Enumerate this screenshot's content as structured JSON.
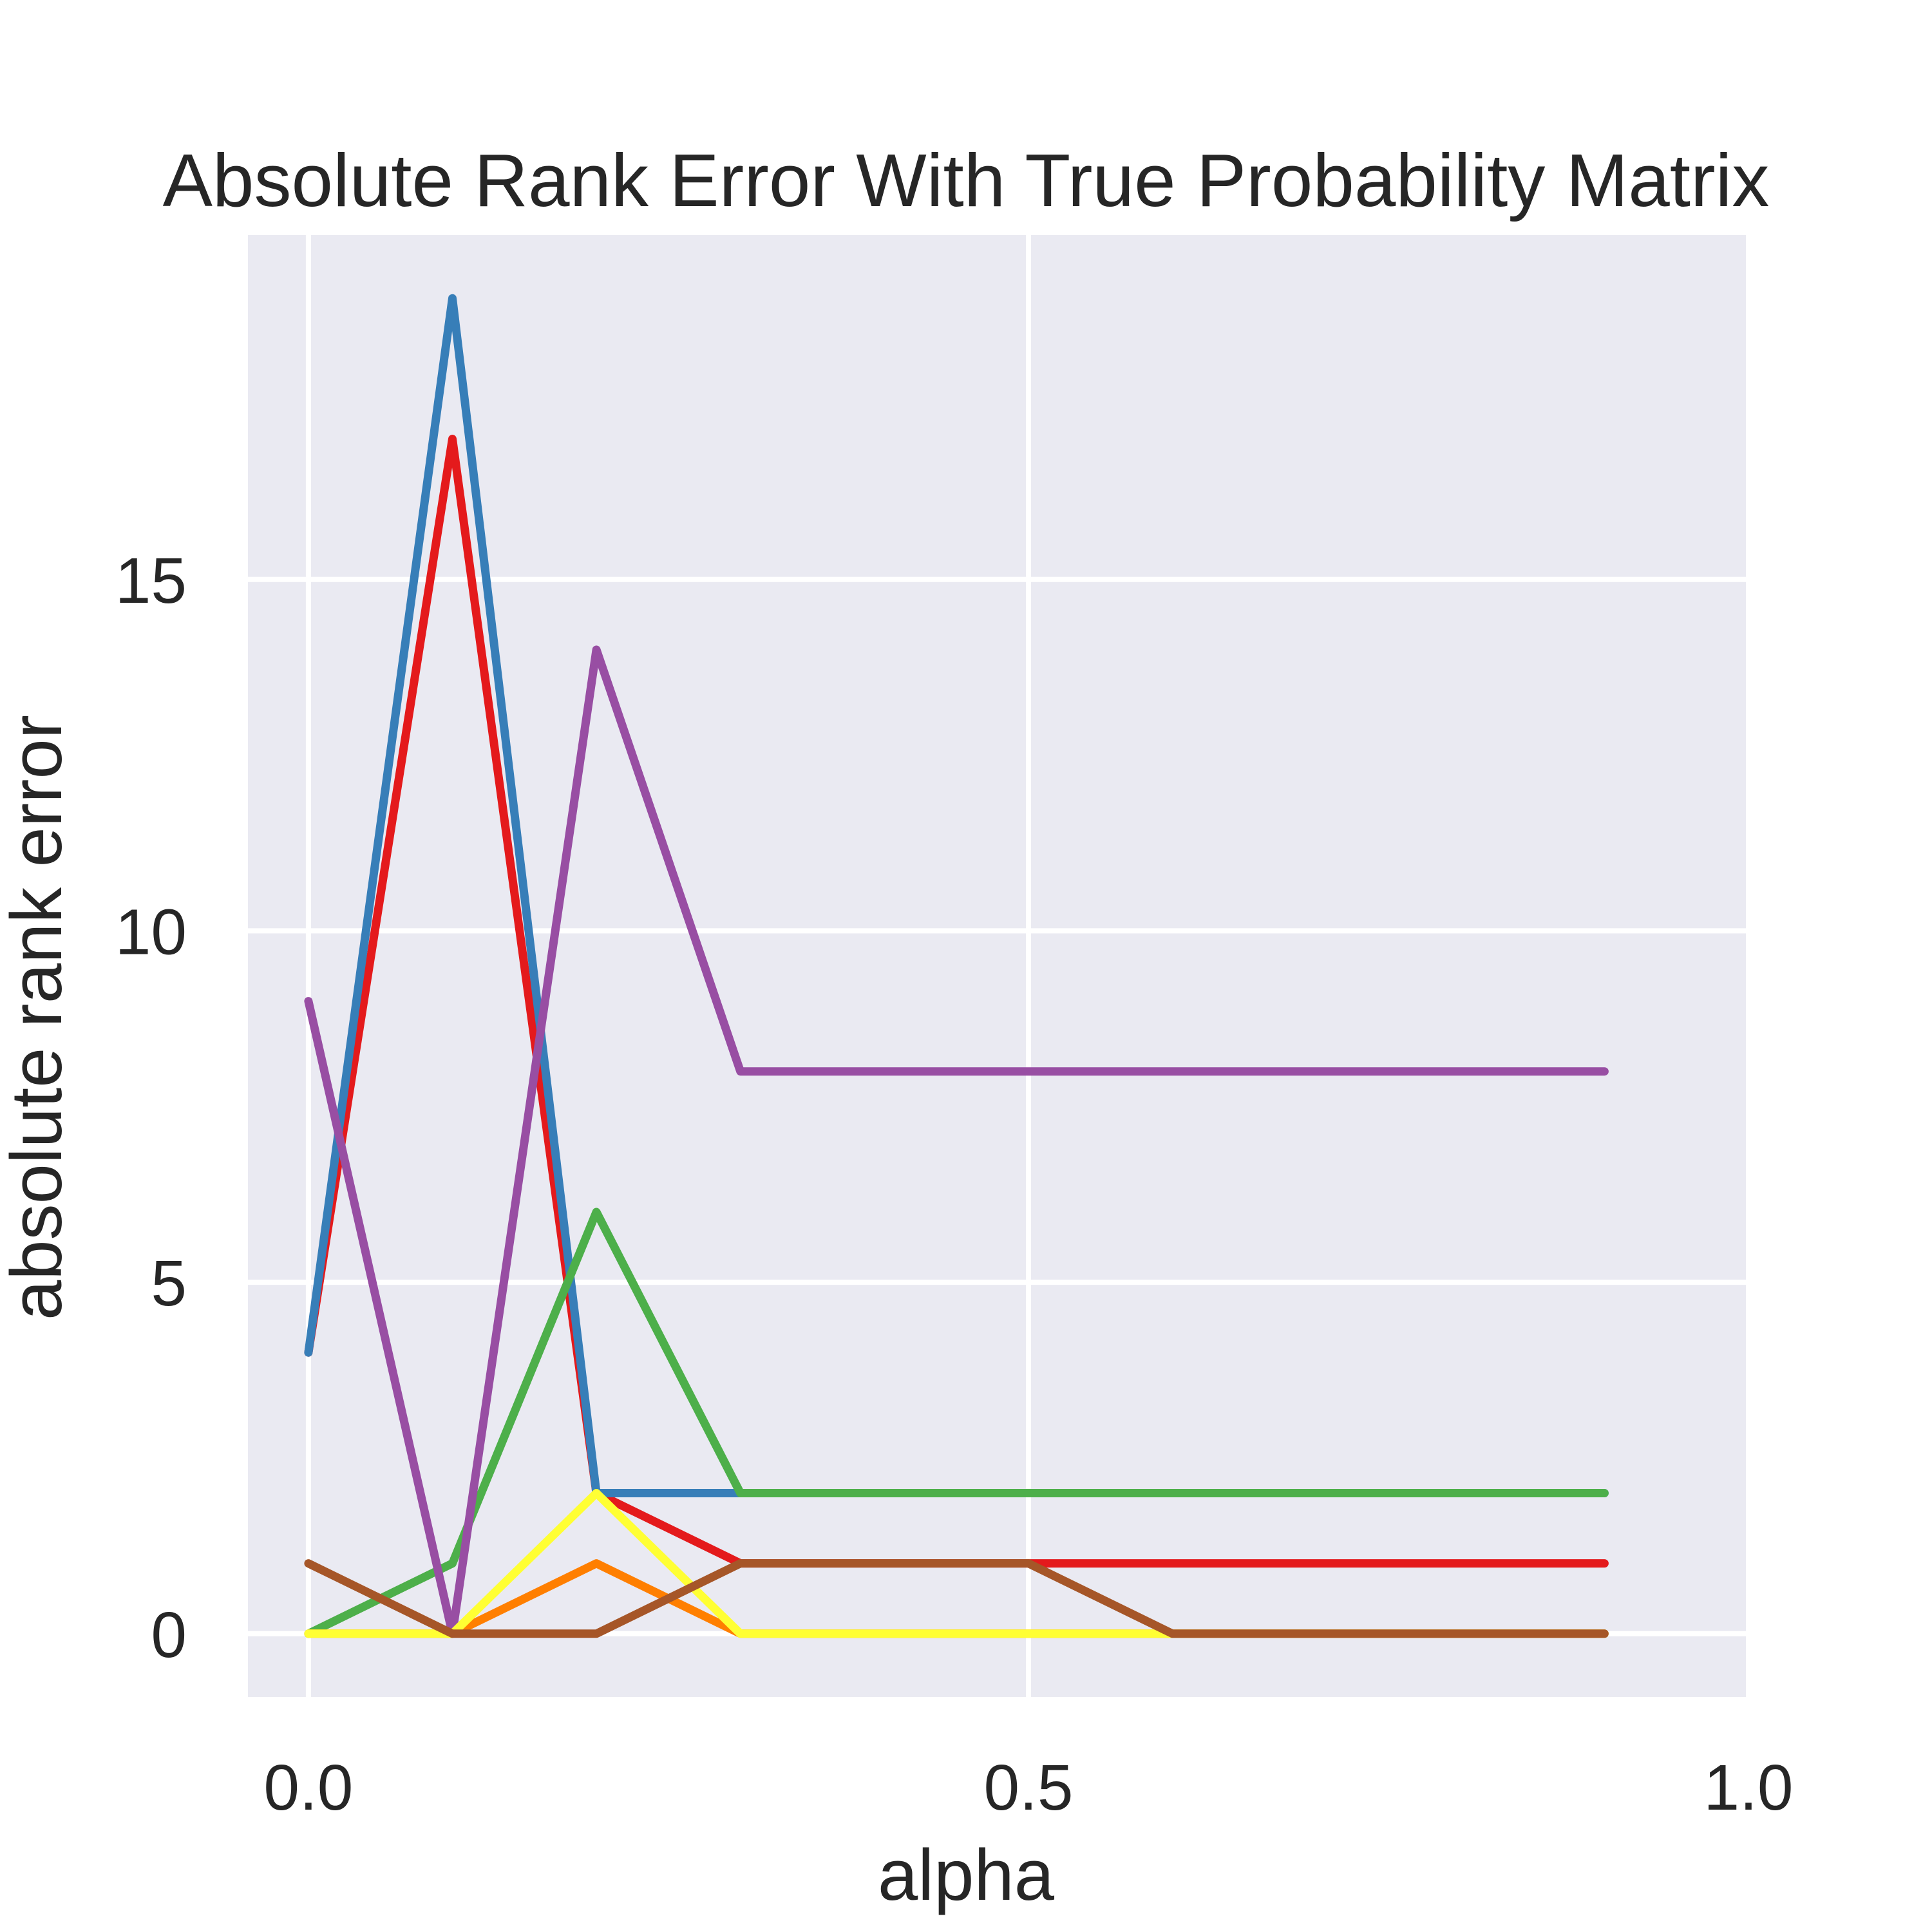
{
  "chart_data": {
    "type": "line",
    "title": "Absolute Rank Error With True Probability Matrix",
    "xlabel": "alpha",
    "ylabel": "absolute rank error",
    "xlim": [
      -0.042,
      1.0
    ],
    "ylim": [
      -0.9,
      19.9
    ],
    "xticks": [
      {
        "value": 0.0,
        "label": "0.0"
      },
      {
        "value": 0.5,
        "label": "0.5"
      },
      {
        "value": 1.0,
        "label": "1.0"
      }
    ],
    "yticks": [
      {
        "value": 0,
        "label": "0"
      },
      {
        "value": 5,
        "label": "5"
      },
      {
        "value": 10,
        "label": "10"
      },
      {
        "value": 15,
        "label": "15"
      }
    ],
    "grid": true,
    "background_color": "#eaeaf2",
    "x": [
      0.0,
      0.1,
      0.2,
      0.3,
      0.4,
      0.5,
      0.6,
      0.7,
      0.8,
      0.9
    ],
    "series": [
      {
        "color": "#e41a1c",
        "values": [
          4,
          17,
          2,
          1,
          1,
          1,
          1,
          1,
          1,
          1
        ]
      },
      {
        "color": "#377eb8",
        "values": [
          4,
          19,
          2,
          2,
          2,
          2,
          2,
          2,
          2,
          2
        ]
      },
      {
        "color": "#4daf4a",
        "values": [
          0,
          1,
          6,
          2,
          2,
          2,
          2,
          2,
          2,
          2
        ]
      },
      {
        "color": "#984ea3",
        "values": [
          9,
          0,
          14,
          8,
          8,
          8,
          8,
          8,
          8,
          8
        ]
      },
      {
        "color": "#ff7f00",
        "values": [
          0,
          0,
          1,
          0,
          0,
          0,
          0,
          0,
          0,
          0
        ]
      },
      {
        "color": "#ffff33",
        "values": [
          0,
          0,
          2,
          0,
          0,
          0,
          0,
          0,
          0,
          0
        ]
      },
      {
        "color": "#a65628",
        "values": [
          1,
          0,
          0,
          1,
          1,
          1,
          0,
          0,
          0,
          0
        ]
      }
    ]
  }
}
